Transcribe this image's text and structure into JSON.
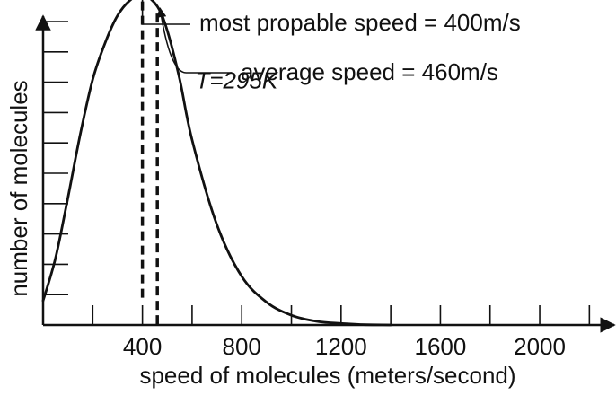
{
  "chart_data": {
    "type": "line",
    "title": "",
    "xlabel": "speed of molecules (meters/second)",
    "ylabel": "number of molecules",
    "xlim": [
      0,
      2300
    ],
    "ylim": [
      0,
      10
    ],
    "x_tick_labels": [
      "400",
      "800",
      "1200",
      "1600",
      "2000"
    ],
    "x_tick_values": [
      200,
      400,
      600,
      800,
      1000,
      1200,
      1400,
      1600,
      1800,
      2000,
      2200
    ],
    "y_tick_values": [
      1,
      2,
      3,
      4,
      5,
      6,
      7,
      8,
      9,
      10,
      11
    ],
    "series": [
      {
        "x": [
          0,
          50,
          100,
          150,
          200,
          250,
          300,
          350,
          400,
          460,
          500,
          550,
          600,
          700,
          800,
          900,
          1000,
          1100,
          1200,
          1300,
          1400
        ],
        "y": [
          0.8,
          2.2,
          4.2,
          6.3,
          8.1,
          9.3,
          10.2,
          10.7,
          10.9,
          10.5,
          9.7,
          8.1,
          6.1,
          3.3,
          1.6,
          0.75,
          0.32,
          0.12,
          0.05,
          0.01,
          0
        ]
      }
    ],
    "annotations": [
      {
        "text": "most propable speed = 400m/s",
        "x": 400,
        "y": 10.9
      },
      {
        "text": "average speed = 460m/s",
        "x": 460,
        "y": 10.5
      },
      {
        "text": "T=295K",
        "x": 620,
        "y": 7.8
      }
    ],
    "grid": false,
    "legend": "none"
  }
}
